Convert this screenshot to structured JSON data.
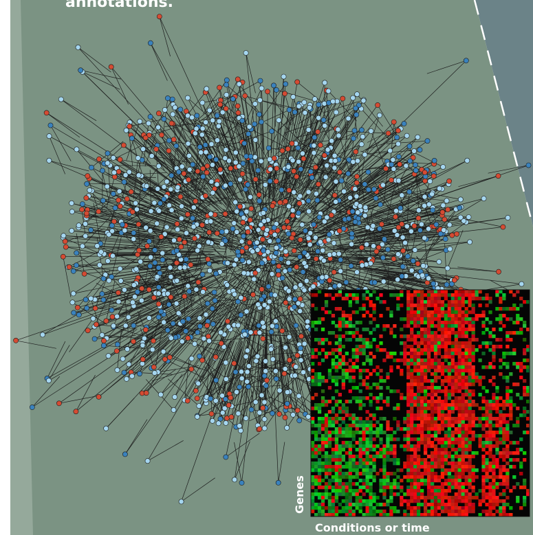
{
  "header": {
    "caption_fragment": "annotations."
  },
  "heatmap": {
    "y_label": "Genes",
    "x_label": "Conditions or time"
  }
}
